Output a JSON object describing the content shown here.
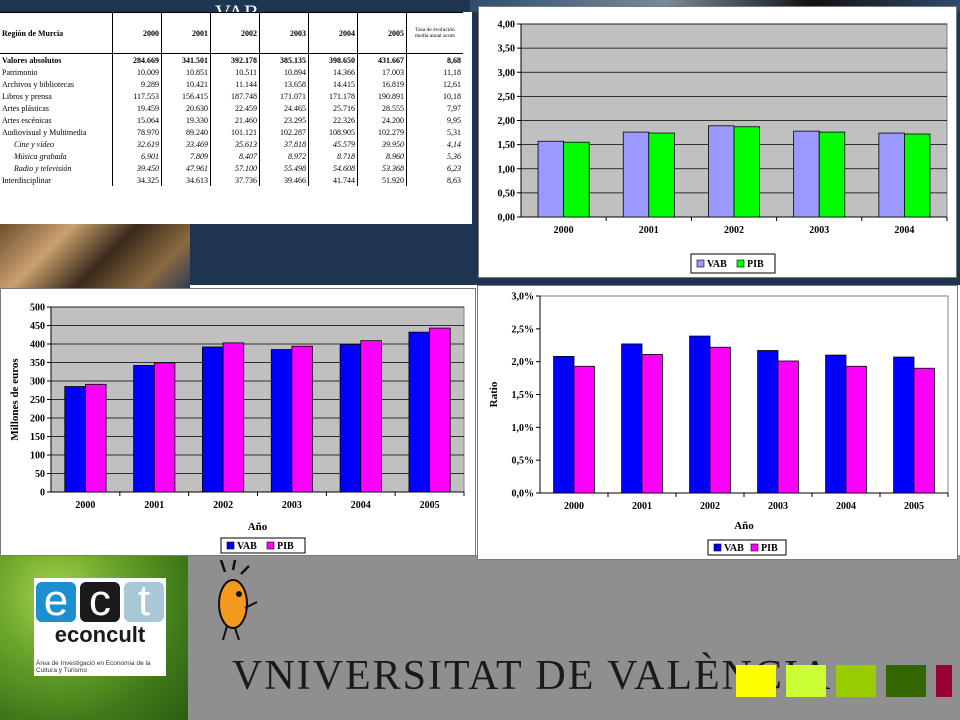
{
  "title": "VAB",
  "table": {
    "header": [
      "Región de Murcia",
      "2000",
      "2001",
      "2002",
      "2003",
      "2004",
      "2005",
      "Tasa de evolución medía anual acum"
    ],
    "rows": [
      {
        "label": "Valores absolutos",
        "values": [
          "284.669",
          "341.501",
          "392.178",
          "385.135",
          "398.650",
          "431.667",
          "8,68"
        ],
        "style": "bold"
      },
      {
        "label": "Patrimonio",
        "values": [
          "10.009",
          "10.851",
          "10.511",
          "10.894",
          "14.366",
          "17.003",
          "11,18"
        ],
        "style": "normal"
      },
      {
        "label": "Archivos y bibliotecas",
        "values": [
          "9.289",
          "10.421",
          "11.144",
          "13.658",
          "14.415",
          "16.819",
          "12,61"
        ],
        "style": "normal"
      },
      {
        "label": "Libros y prensa",
        "values": [
          "117.553",
          "156.415",
          "187.748",
          "171.071",
          "171.178",
          "190.891",
          "10,18"
        ],
        "style": "normal"
      },
      {
        "label": "Artes plásticas",
        "values": [
          "19.459",
          "20.630",
          "22.459",
          "24.465",
          "25.716",
          "28.555",
          "7,97"
        ],
        "style": "normal"
      },
      {
        "label": "Artes escénicas",
        "values": [
          "15.064",
          "19.330",
          "21.460",
          "23.295",
          "22.326",
          "24.200",
          "9,95"
        ],
        "style": "normal"
      },
      {
        "label": "Audiovisual y Multimedia",
        "values": [
          "78.970",
          "89.240",
          "101.121",
          "102.287",
          "108.905",
          "102.279",
          "5,31"
        ],
        "style": "normal"
      },
      {
        "label": "Cine y vídeo",
        "values": [
          "32.619",
          "33.469",
          "35.613",
          "37.818",
          "45.579",
          "39.950",
          "4,14"
        ],
        "style": "italic"
      },
      {
        "label": "Música grabada",
        "values": [
          "6.901",
          "7.809",
          "8.407",
          "8.972",
          "8.718",
          "8.960",
          "5,36"
        ],
        "style": "italic"
      },
      {
        "label": "Radio y televisión",
        "values": [
          "39.450",
          "47.961",
          "57.100",
          "55.498",
          "54.608",
          "53.368",
          "6,23"
        ],
        "style": "italic"
      },
      {
        "label": "Interdisciplinar",
        "values": [
          "34.325",
          "34.613",
          "37.736",
          "39.466",
          "41.744",
          "51.920",
          "8,63"
        ],
        "style": "normal"
      }
    ]
  },
  "chart_data": [
    {
      "type": "bar",
      "categories": [
        "2000",
        "2001",
        "2002",
        "2003",
        "2004"
      ],
      "series": [
        {
          "name": "VAB",
          "values": [
            1.57,
            1.76,
            1.89,
            1.78,
            1.74
          ],
          "color": "#9999ff"
        },
        {
          "name": "PIB",
          "values": [
            1.55,
            1.74,
            1.87,
            1.76,
            1.72
          ],
          "color": "#00ff00"
        }
      ],
      "ylim": [
        0,
        4
      ],
      "yticks": [
        "0,00",
        "0,50",
        "1,00",
        "1,50",
        "2,00",
        "2,50",
        "3,00",
        "3,50",
        "4,00"
      ],
      "xlabel": "",
      "ylabel": "",
      "legend": "bottom-center",
      "grid": "horizontal"
    },
    {
      "type": "bar",
      "categories": [
        "2000",
        "2001",
        "2002",
        "2003",
        "2004",
        "2005"
      ],
      "series": [
        {
          "name": "VAB",
          "values": [
            285,
            342,
            392,
            385,
            399,
            432
          ],
          "color": "#0000ff"
        },
        {
          "name": "PIB",
          "values": [
            291,
            349,
            403,
            394,
            409,
            443
          ],
          "color": "#ff00ff"
        }
      ],
      "ylim": [
        0,
        500
      ],
      "yticks": [
        "0",
        "50",
        "100",
        "150",
        "200",
        "250",
        "300",
        "350",
        "400",
        "450",
        "500"
      ],
      "xlabel": "Año",
      "ylabel": "Millones de euros",
      "legend": "bottom-center",
      "grid": "horizontal"
    },
    {
      "type": "bar",
      "categories": [
        "2000",
        "2001",
        "2002",
        "2003",
        "2004",
        "2005"
      ],
      "series": [
        {
          "name": "VAB",
          "values": [
            2.08,
            2.27,
            2.39,
            2.17,
            2.1,
            2.07
          ],
          "color": "#0000ff"
        },
        {
          "name": "PIB",
          "values": [
            1.93,
            2.11,
            2.22,
            2.01,
            1.93,
            1.9
          ],
          "color": "#ff00ff"
        }
      ],
      "ylim": [
        0,
        3
      ],
      "yticks": [
        "0,0%",
        "0,5%",
        "1,0%",
        "1,5%",
        "2,0%",
        "2,5%",
        "3,0%"
      ],
      "xlabel": "Año",
      "ylabel": "Ratio",
      "legend": "bottom-center",
      "grid": "none"
    }
  ],
  "branding": {
    "econcult_letters": [
      "e",
      "c",
      "t"
    ],
    "econcult_letter_colors": [
      "#1b8fd0",
      "#1a1a1a",
      "#a8c8d8"
    ],
    "econcult_name": "econcult",
    "econcult_tagline": "Àrea de Investigació en Economia de la Cultura y Turismo",
    "university_name": "VNIVERSITAT DE VALÈNCIA",
    "color_squares": [
      "#ffff00",
      "#ccff33",
      "#99cc00",
      "#336600",
      "#990033"
    ]
  }
}
